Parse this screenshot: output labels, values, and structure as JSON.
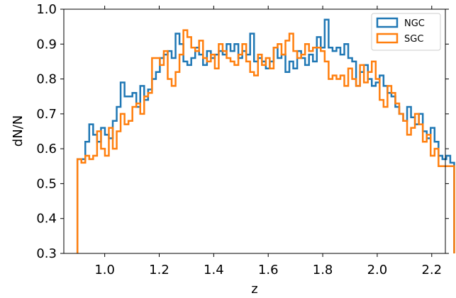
{
  "chart_data": {
    "type": "step-histogram",
    "xlabel": "z",
    "ylabel": "dN/N",
    "xlim": [
      0.85,
      2.25
    ],
    "ylim": [
      0.3,
      1.0
    ],
    "xticks": [
      1.0,
      1.2,
      1.4,
      1.6,
      1.8,
      2.0,
      2.2
    ],
    "xtick_labels": [
      "1.0",
      "1.2",
      "1.4",
      "1.6",
      "1.8",
      "2.0",
      "2.2"
    ],
    "yticks": [
      0.3,
      0.4,
      0.5,
      0.6,
      0.7,
      0.8,
      0.9,
      1.0
    ],
    "ytick_labels": [
      "0.3",
      "0.4",
      "0.5",
      "0.6",
      "0.7",
      "0.8",
      "0.9",
      "1.0"
    ],
    "legend_position": "top-right",
    "bin_start": 0.9,
    "bin_width": 0.0144,
    "series": [
      {
        "name": "NGC",
        "color": "#1f77b4",
        "values": [
          0.57,
          0.57,
          0.62,
          0.67,
          0.64,
          0.62,
          0.66,
          0.64,
          0.63,
          0.68,
          0.72,
          0.79,
          0.75,
          0.75,
          0.76,
          0.72,
          0.78,
          0.74,
          0.77,
          0.8,
          0.82,
          0.86,
          0.87,
          0.88,
          0.86,
          0.93,
          0.9,
          0.85,
          0.84,
          0.86,
          0.89,
          0.87,
          0.84,
          0.88,
          0.86,
          0.87,
          0.88,
          0.87,
          0.9,
          0.88,
          0.9,
          0.86,
          0.88,
          0.87,
          0.93,
          0.85,
          0.86,
          0.85,
          0.83,
          0.85,
          0.89,
          0.86,
          0.87,
          0.82,
          0.85,
          0.83,
          0.88,
          0.86,
          0.84,
          0.87,
          0.85,
          0.92,
          0.89,
          0.97,
          0.89,
          0.88,
          0.89,
          0.87,
          0.9,
          0.86,
          0.85,
          0.78,
          0.82,
          0.84,
          0.8,
          0.78,
          0.79,
          0.81,
          0.78,
          0.76,
          0.75,
          0.72,
          0.7,
          0.68,
          0.72,
          0.69,
          0.67,
          0.7,
          0.65,
          0.63,
          0.66,
          0.62,
          0.58,
          0.57,
          0.58,
          0.56
        ]
      },
      {
        "name": "SGC",
        "color": "#ff7f0e",
        "values": [
          0.57,
          0.56,
          0.58,
          0.57,
          0.58,
          0.65,
          0.6,
          0.58,
          0.66,
          0.6,
          0.65,
          0.7,
          0.67,
          0.68,
          0.72,
          0.73,
          0.7,
          0.75,
          0.76,
          0.86,
          0.86,
          0.84,
          0.88,
          0.8,
          0.78,
          0.82,
          0.87,
          0.94,
          0.92,
          0.89,
          0.88,
          0.91,
          0.86,
          0.85,
          0.87,
          0.83,
          0.9,
          0.88,
          0.86,
          0.85,
          0.84,
          0.87,
          0.9,
          0.85,
          0.82,
          0.81,
          0.87,
          0.84,
          0.86,
          0.83,
          0.89,
          0.9,
          0.87,
          0.91,
          0.93,
          0.88,
          0.86,
          0.87,
          0.9,
          0.88,
          0.89,
          0.89,
          0.88,
          0.85,
          0.8,
          0.81,
          0.8,
          0.81,
          0.78,
          0.83,
          0.8,
          0.78,
          0.84,
          0.79,
          0.82,
          0.85,
          0.8,
          0.74,
          0.72,
          0.78,
          0.76,
          0.73,
          0.7,
          0.68,
          0.64,
          0.66,
          0.7,
          0.67,
          0.62,
          0.64,
          0.58,
          0.6,
          0.55,
          0.55,
          0.55,
          0.55
        ]
      }
    ]
  }
}
